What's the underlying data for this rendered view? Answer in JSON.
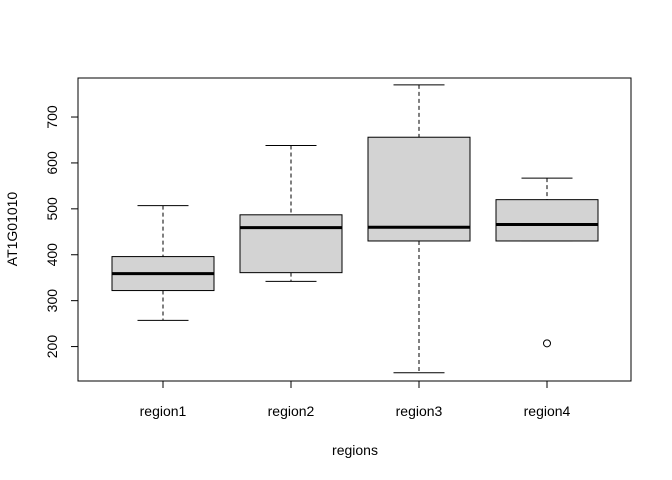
{
  "chart_data": {
    "type": "boxplot",
    "title": "",
    "xlabel": "regions",
    "ylabel": "AT1G01010",
    "categories": [
      "region1",
      "region2",
      "region3",
      "region4"
    ],
    "ylim": [
      125,
      785
    ],
    "yticks": [
      200,
      300,
      400,
      500,
      600,
      700
    ],
    "box_color": "#d3d3d3",
    "boxes": [
      {
        "category": "region1",
        "whisker_low": 257,
        "q1": 322,
        "median": 359,
        "q3": 396,
        "whisker_high": 507,
        "outliers": []
      },
      {
        "category": "region2",
        "whisker_low": 342,
        "q1": 361,
        "median": 459,
        "q3": 487,
        "whisker_high": 638,
        "outliers": []
      },
      {
        "category": "region3",
        "whisker_low": 143,
        "q1": 430,
        "median": 460,
        "q3": 656,
        "whisker_high": 770,
        "outliers": []
      },
      {
        "category": "region4",
        "whisker_low": 430,
        "q1": 430,
        "median": 466,
        "q3": 520,
        "whisker_high": 567,
        "outliers": [
          207
        ]
      }
    ]
  }
}
